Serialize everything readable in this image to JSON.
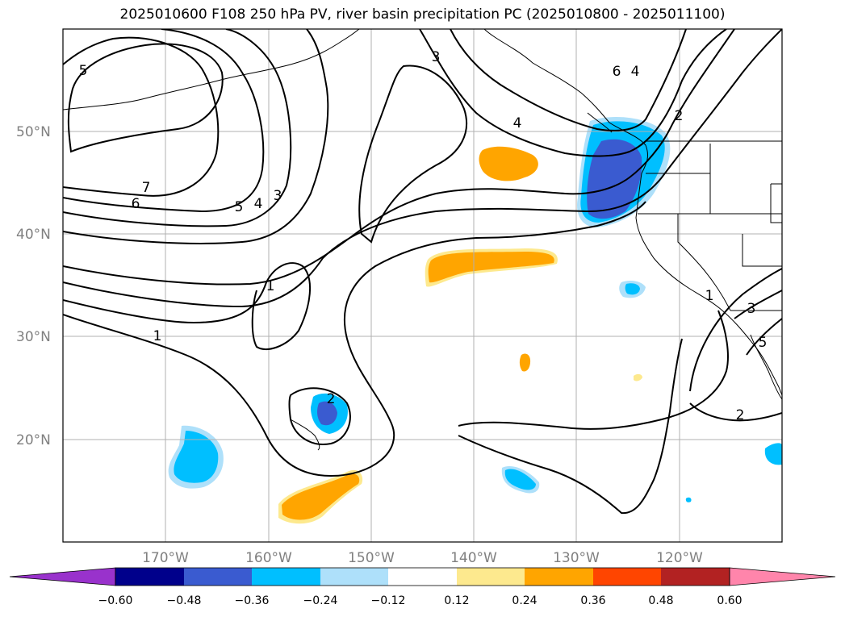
{
  "title": "2025010600 F108 250 hPa PV, river basin precipitation PC (2025010800 - 2025011100)",
  "colors": {
    "frame": "#000000",
    "grid": "#b0b0b0",
    "coast": "#000000",
    "contour": "#000000",
    "axis_text": "#808080"
  },
  "map": {
    "projection": "PlateCarree",
    "lon_range": [
      -180,
      -110
    ],
    "lat_range": [
      10,
      60
    ],
    "grid": true,
    "lat_labels": [
      {
        "lat": 50,
        "text": "50°N"
      },
      {
        "lat": 40,
        "text": "40°N"
      },
      {
        "lat": 30,
        "text": "30°N"
      },
      {
        "lat": 20,
        "text": "20°N"
      }
    ],
    "lon_labels": [
      {
        "lon": -170,
        "text": "170°W"
      },
      {
        "lon": -160,
        "text": "160°W"
      },
      {
        "lon": -150,
        "text": "150°W"
      },
      {
        "lon": -140,
        "text": "140°W"
      },
      {
        "lon": -130,
        "text": "130°W"
      },
      {
        "lon": -120,
        "text": "120°W"
      }
    ]
  },
  "pv_contour_labels": [
    "5",
    "7",
    "6",
    "5",
    "4",
    "3",
    "3",
    "4",
    "6",
    "4",
    "2",
    "1",
    "1",
    "2",
    "1",
    "3",
    "5",
    "2"
  ],
  "colorbar": {
    "extend": "both",
    "colors": [
      "#9932cc",
      "#00008b",
      "#3a5bd0",
      "#00bfff",
      "#aee0fa",
      "#ffffff",
      "#fde98e",
      "#ffa500",
      "#ff4500",
      "#b22222",
      "#ff85ab"
    ],
    "tick_labels": [
      "−0.60",
      "−0.48",
      "−0.36",
      "−0.24",
      "−0.12",
      "0.12",
      "0.24",
      "0.36",
      "0.48",
      "0.60"
    ]
  }
}
